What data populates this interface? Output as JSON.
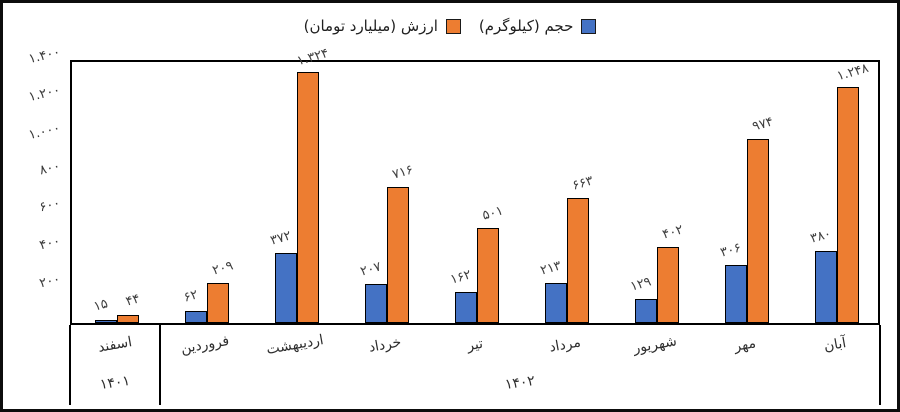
{
  "legend": {
    "items": [
      {
        "label": "ارزش (میلیارد تومان)",
        "color": "#ED7D31",
        "series": "value"
      },
      {
        "label": "حجم (کیلوگرم)",
        "color": "#4472C4",
        "series": "volume"
      }
    ]
  },
  "chart_data": {
    "type": "bar",
    "categories": [
      "اسفند",
      "فروردین",
      "اردیبهشت",
      "خرداد",
      "تیر",
      "مرداد",
      "شهریور",
      "مهر",
      "آبان"
    ],
    "year_groups": [
      {
        "label": "۱۴۰۱",
        "span": [
          0,
          0
        ]
      },
      {
        "label": "۱۴۰۲",
        "span": [
          1,
          8
        ]
      }
    ],
    "series": [
      {
        "name": "حجم (کیلوگرم)",
        "color": "#4472C4",
        "values": [
          15,
          62,
          372,
          207,
          162,
          213,
          129,
          306,
          380
        ],
        "labels": [
          "۱۵",
          "۶۲",
          "۳۷۲",
          "۲۰۷",
          "۱۶۲",
          "۲۱۳",
          "۱۲۹",
          "۳۰۶",
          "۳۸۰"
        ]
      },
      {
        "name": "ارزش (میلیارد تومان)",
        "color": "#ED7D31",
        "values": [
          44,
          209,
          1324,
          716,
          501,
          663,
          402,
          974,
          1248
        ],
        "labels": [
          "۴۴",
          "۲۰۹",
          "۱.۳۲۴",
          "۷۱۶",
          "۵۰۱",
          "۶۶۳",
          "۴۰۲",
          "۹۷۴",
          "۱.۲۴۸"
        ]
      }
    ],
    "ylim": [
      0,
      1400
    ],
    "ytick_step": 200,
    "yticks": [
      {
        "value": 200,
        "label": "۲۰۰"
      },
      {
        "value": 400,
        "label": "۴۰۰"
      },
      {
        "value": 600,
        "label": "۶۰۰"
      },
      {
        "value": 800,
        "label": "۸۰۰"
      },
      {
        "value": 1000,
        "label": "۱.۰۰۰"
      },
      {
        "value": 1200,
        "label": "۱.۲۰۰"
      },
      {
        "value": 1400,
        "label": "۱.۴۰۰"
      }
    ],
    "grid": false,
    "legend_position": "top-center"
  }
}
